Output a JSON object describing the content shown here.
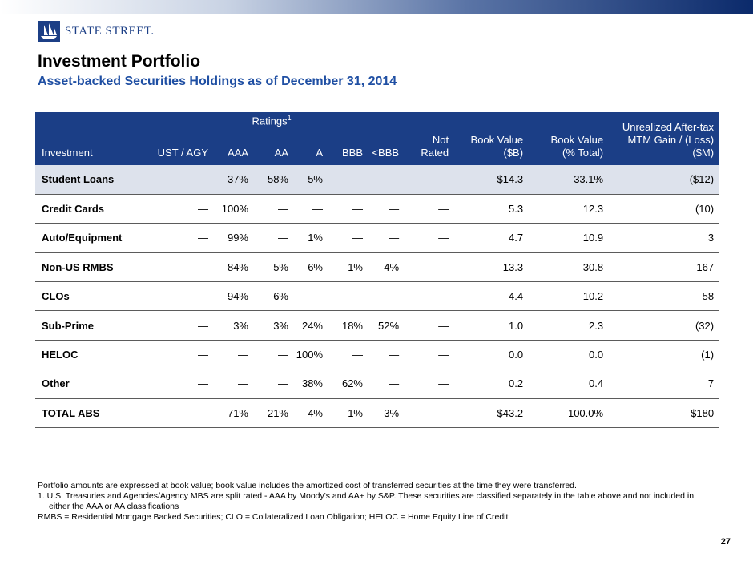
{
  "brand": {
    "logo_text": "STATE STREET."
  },
  "header": {
    "title": "Investment Portfolio",
    "subtitle": "Asset-backed Securities Holdings as of December 31, 2014"
  },
  "table": {
    "group_header": "Ratings",
    "group_footnote_mark": "1",
    "columns": {
      "investment": "Investment",
      "ust_agy": "UST / AGY",
      "aaa": "AAA",
      "aa": "AA",
      "a": "A",
      "bbb": "BBB",
      "lt_bbb": "<BBB",
      "not_rated_1": "Not",
      "not_rated_2": "Rated",
      "book_value_b_1": "Book Value",
      "book_value_b_2": "($B)",
      "book_value_pct_1": "Book Value",
      "book_value_pct_2": "(% Total)",
      "unrealized_1": "Unrealized After-tax",
      "unrealized_2": "MTM Gain / (Loss)",
      "unrealized_3": "($M)"
    },
    "rows": [
      {
        "name": "Student Loans",
        "cells": [
          "—",
          "37%",
          "58%",
          "5%",
          "—",
          "—",
          "—",
          "$14.3",
          "33.1%",
          "($12)"
        ]
      },
      {
        "name": "Credit Cards",
        "cells": [
          "—",
          "100%",
          "—",
          "—",
          "—",
          "—",
          "—",
          "5.3",
          "12.3",
          "(10)"
        ]
      },
      {
        "name": "Auto/Equipment",
        "cells": [
          "—",
          "99%",
          "—",
          "1%",
          "—",
          "—",
          "—",
          "4.7",
          "10.9",
          "3"
        ]
      },
      {
        "name": "Non-US RMBS",
        "cells": [
          "—",
          "84%",
          "5%",
          "6%",
          "1%",
          "4%",
          "—",
          "13.3",
          "30.8",
          "167"
        ]
      },
      {
        "name": "CLOs",
        "cells": [
          "—",
          "94%",
          "6%",
          "—",
          "—",
          "—",
          "—",
          "4.4",
          "10.2",
          "58"
        ]
      },
      {
        "name": "Sub-Prime",
        "cells": [
          "—",
          "3%",
          "3%",
          "24%",
          "18%",
          "52%",
          "—",
          "1.0",
          "2.3",
          "(32)"
        ]
      },
      {
        "name": "HELOC",
        "cells": [
          "—",
          "—",
          "—",
          "100%",
          "—",
          "—",
          "—",
          "0.0",
          "0.0",
          "(1)"
        ]
      },
      {
        "name": "Other",
        "cells": [
          "—",
          "—",
          "—",
          "38%",
          "62%",
          "—",
          "—",
          "0.2",
          "0.4",
          "7"
        ]
      },
      {
        "name": "TOTAL ABS",
        "cells": [
          "—",
          "71%",
          "21%",
          "4%",
          "1%",
          "3%",
          "—",
          "$43.2",
          "100.0%",
          "$180"
        ]
      }
    ]
  },
  "footnotes": {
    "line1": "Portfolio amounts are expressed at book value; book value includes the amortized cost of transferred securities at the time they were transferred.",
    "line2": "1.  U.S. Treasuries and Agencies/Agency MBS are split rated - AAA by Moody's and AA+ by S&P. These securities are classified separately in the table above and not included in",
    "line2_cont": "either the AAA or AA classifications",
    "line3": "RMBS = Residential Mortgage Backed Securities; CLO = Collateralized Loan Obligation; HELOC = Home Equity Line of Credit"
  },
  "page_number": "27",
  "colors": {
    "header_bg": "#1b3e86",
    "subtitle": "#1f4fa3",
    "highlight_row": "#dde2ec"
  }
}
